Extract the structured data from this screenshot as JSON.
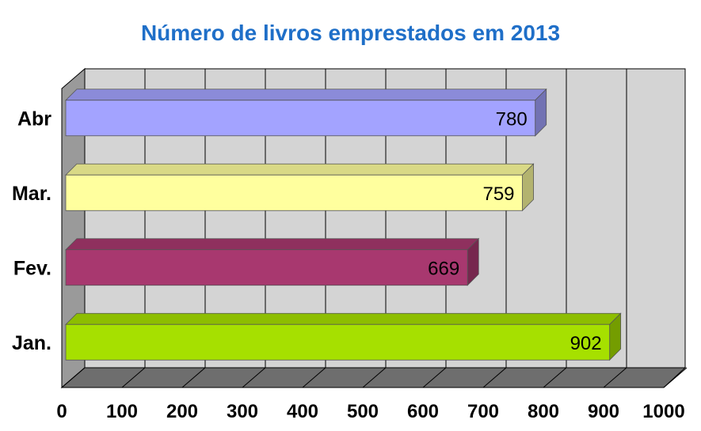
{
  "chart_data": {
    "type": "bar",
    "orientation": "horizontal",
    "title": "Número de livros emprestados em 2013",
    "categories": [
      "Jan.",
      "Fev.",
      "Mar.",
      "Abr"
    ],
    "values": [
      902,
      669,
      759,
      780
    ],
    "data_labels": [
      "902",
      "669",
      "759",
      "780"
    ],
    "xlim": [
      0,
      1000
    ],
    "x_ticks": [
      0,
      100,
      200,
      300,
      400,
      500,
      600,
      700,
      800,
      900,
      1000
    ],
    "x_tick_labels": [
      "0",
      "100",
      "200",
      "300",
      "400",
      "500",
      "600",
      "700",
      "800",
      "900",
      "1000"
    ],
    "grid": true,
    "style": "3d",
    "colors": {
      "Jan.": "#a6e000",
      "Fev.": "#a8386f",
      "Mar.": "#ffff9e",
      "Abr": "#a3a3ff"
    },
    "background": "#d4d4d4",
    "title_color": "#1f6fc8"
  }
}
